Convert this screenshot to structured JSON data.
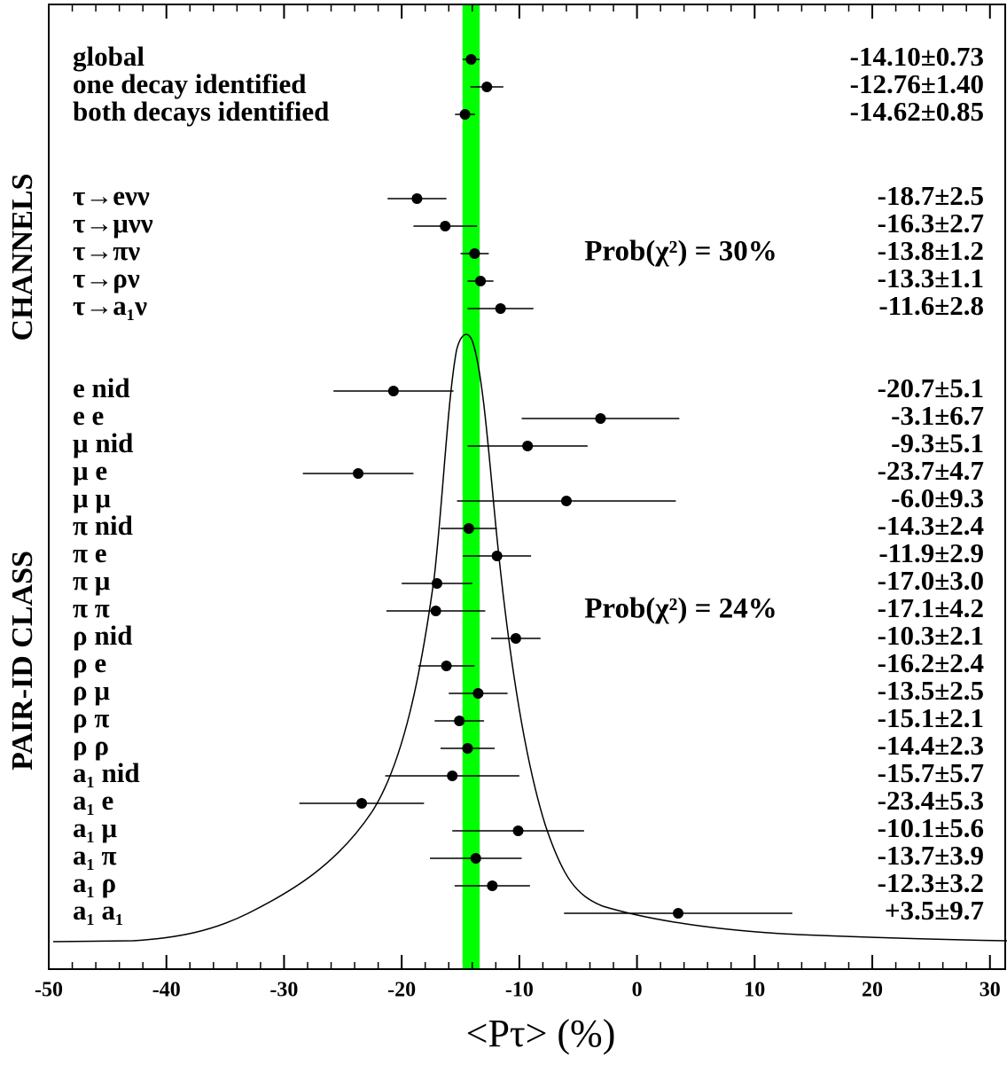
{
  "chart_data": {
    "type": "forest",
    "xlabel": "<Pτ> (%)",
    "xlim": [
      -50,
      31.3
    ],
    "xticks": [
      -50,
      -40,
      -30,
      -20,
      -10,
      0,
      10,
      20,
      30
    ],
    "xminorticks": [
      -48,
      -46,
      -44,
      -42,
      -38,
      -36,
      -34,
      -32,
      -28,
      -26,
      -24,
      -22,
      -18,
      -16,
      -14,
      -12,
      -8,
      -6,
      -4,
      -2,
      2,
      4,
      6,
      8,
      12,
      14,
      16,
      18,
      22,
      24,
      26,
      28
    ],
    "band_color": "#00ff00",
    "point_color": "#000000",
    "sections": [
      {
        "categories": [
          "global",
          "one decay identified",
          "both decays identified"
        ],
        "values": [
          -14.1,
          -12.76,
          -14.62
        ],
        "errors": [
          0.73,
          1.4,
          0.85
        ],
        "value_labels": [
          "-14.10±0.73",
          "-12.76±1.40",
          "-14.62±0.85"
        ]
      },
      {
        "label": "CHANNELS",
        "annotation": "Prob(χ²) = 30%",
        "categories": [
          "τ→eνν",
          "τ→μνν",
          "τ→πν",
          "τ→ρν",
          "τ→a₁ν"
        ],
        "values": [
          -18.7,
          -16.3,
          -13.8,
          -13.3,
          -11.6
        ],
        "errors": [
          2.5,
          2.7,
          1.2,
          1.1,
          2.8
        ],
        "value_labels": [
          "-18.7±2.5",
          "-16.3±2.7",
          "-13.8±1.2",
          "-13.3±1.1",
          "-11.6±2.8"
        ]
      },
      {
        "label": "PAIR-ID CLASS",
        "annotation": "Prob(χ²) = 24%",
        "categories": [
          "e nid",
          "e e",
          "μ nid",
          "μ e",
          "μ μ",
          "π nid",
          "π e",
          "π μ",
          "π π",
          "ρ nid",
          "ρ e",
          "ρ μ",
          "ρ π",
          "ρ ρ",
          "a₁ nid",
          "a₁ e",
          "a₁ μ",
          "a₁ π",
          "a₁ ρ",
          "a₁ a₁"
        ],
        "values": [
          -20.7,
          -3.1,
          -9.3,
          -23.7,
          -6.0,
          -14.3,
          -11.9,
          -17.0,
          -17.1,
          -10.3,
          -16.2,
          -13.5,
          -15.1,
          -14.4,
          -15.7,
          -23.4,
          -10.1,
          -13.7,
          -12.3,
          3.5
        ],
        "errors": [
          5.1,
          6.7,
          5.1,
          4.7,
          9.3,
          2.4,
          2.9,
          3.0,
          4.2,
          2.1,
          2.4,
          2.5,
          2.1,
          2.3,
          5.7,
          5.3,
          5.6,
          3.9,
          3.2,
          9.7
        ],
        "value_labels": [
          "-20.7±5.1",
          "-3.1±6.7",
          "-9.3±5.1",
          "-23.7±4.7",
          "-6.0±9.3",
          "-14.3±2.4",
          "-11.9±2.9",
          "-17.0±3.0",
          "-17.1±4.2",
          "-10.3±2.1",
          "-16.2±2.4",
          "-13.5±2.5",
          "-15.1±2.1",
          "-14.4±2.3",
          "-15.7±5.7",
          "-23.4±5.3",
          "-10.1±5.6",
          "-13.7±3.9",
          "-12.3±3.2",
          "+3.5±9.7"
        ]
      }
    ]
  }
}
